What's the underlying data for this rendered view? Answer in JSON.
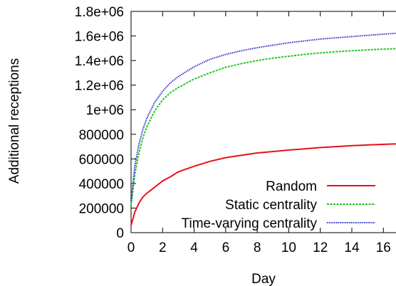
{
  "chart_data": {
    "type": "line",
    "title": "",
    "xlabel": "Day",
    "ylabel": "Additional receptions",
    "xlim": [
      0,
      16.8
    ],
    "ylim": [
      0,
      1800000
    ],
    "xticks": [
      0,
      2,
      4,
      6,
      8,
      10,
      12,
      14,
      16
    ],
    "xtick_labels": [
      "0",
      "2",
      "4",
      "6",
      "8",
      "10",
      "12",
      "14",
      "16"
    ],
    "yticks": [
      0,
      200000,
      400000,
      600000,
      800000,
      1000000,
      1200000,
      1400000,
      1600000,
      1800000
    ],
    "ytick_labels": [
      "0",
      "200000",
      "400000",
      "600000",
      "800000",
      "1e+06",
      "1.2e+06",
      "1.4e+06",
      "1.6e+06",
      "1.8e+06"
    ],
    "grid": false,
    "legend_position": "bottom-right",
    "series": [
      {
        "name": "Random",
        "color": "#e8101a",
        "dash": "solid",
        "x": [
          0,
          0.25,
          0.5,
          0.75,
          1,
          1.5,
          2,
          2.5,
          3,
          4,
          5,
          6,
          7,
          8,
          9,
          10,
          11,
          12,
          13,
          14,
          15,
          16,
          16.8
        ],
        "y": [
          60000,
          170000,
          240000,
          290000,
          320000,
          370000,
          420000,
          455000,
          495000,
          540000,
          580000,
          610000,
          630000,
          648000,
          660000,
          672000,
          682000,
          692000,
          700000,
          707000,
          713000,
          718000,
          722000
        ]
      },
      {
        "name": "Static centrality",
        "color": "#1ec81e",
        "dash": "dashed",
        "x": [
          0,
          0.25,
          0.5,
          0.75,
          1,
          1.5,
          2,
          2.5,
          3,
          4,
          5,
          6,
          7,
          8,
          9,
          10,
          11,
          12,
          13,
          14,
          15,
          16,
          16.8
        ],
        "y": [
          220000,
          480000,
          650000,
          770000,
          860000,
          990000,
          1080000,
          1140000,
          1180000,
          1250000,
          1300000,
          1345000,
          1375000,
          1400000,
          1420000,
          1435000,
          1450000,
          1462000,
          1472000,
          1480000,
          1487000,
          1493000,
          1497000
        ]
      },
      {
        "name": "Time-varying centrality",
        "color": "#1a1ac8",
        "dash": "dotted",
        "x": [
          0,
          0.25,
          0.5,
          0.75,
          1,
          1.5,
          2,
          2.5,
          3,
          4,
          5,
          6,
          7,
          8,
          9,
          10,
          11,
          12,
          13,
          14,
          15,
          16,
          16.8
        ],
        "y": [
          260000,
          550000,
          720000,
          840000,
          930000,
          1060000,
          1150000,
          1220000,
          1270000,
          1350000,
          1410000,
          1450000,
          1480000,
          1505000,
          1525000,
          1545000,
          1560000,
          1575000,
          1585000,
          1595000,
          1605000,
          1615000,
          1622000
        ]
      }
    ]
  }
}
